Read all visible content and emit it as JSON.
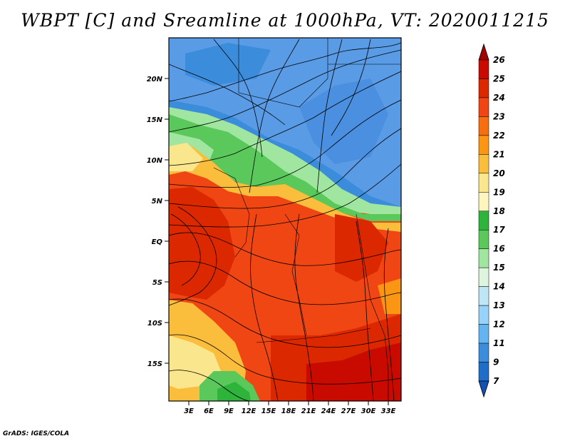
{
  "title": "WBPT [C] and Sreamline at 1000hPa, VT: 2020011215",
  "credit": "GrADS: IGES/COLA",
  "lat_labels": [
    "20N",
    "15N",
    "10N",
    "5N",
    "EQ",
    "5S",
    "10S",
    "15S"
  ],
  "lon_labels": [
    "3E",
    "6E",
    "9E",
    "12E",
    "15E",
    "18E",
    "21E",
    "24E",
    "27E",
    "30E",
    "33E"
  ],
  "colorbar": {
    "labels": [
      "26",
      "25",
      "24",
      "23",
      "22",
      "21",
      "20",
      "19",
      "18",
      "17",
      "16",
      "15",
      "14",
      "13",
      "12",
      "11",
      "9",
      "7"
    ],
    "colors": [
      "#a50000",
      "#c80a00",
      "#dc2800",
      "#f04614",
      "#f56e10",
      "#fa9614",
      "#fabe3c",
      "#fae68c",
      "#fff5be",
      "#2eb43a",
      "#5ac85a",
      "#a0e6a0",
      "#dcf5dc",
      "#bee6f5",
      "#96d2fa",
      "#64b4f0",
      "#3c8cdc",
      "#1e6ec8",
      "#1450b4"
    ]
  },
  "colors": {
    "blue": "#5a9be6",
    "green": "#6ecf6e",
    "yellow": "#fae68c",
    "orange": "#f56e10",
    "red": "#dc2800",
    "darkred": "#c80a00"
  }
}
